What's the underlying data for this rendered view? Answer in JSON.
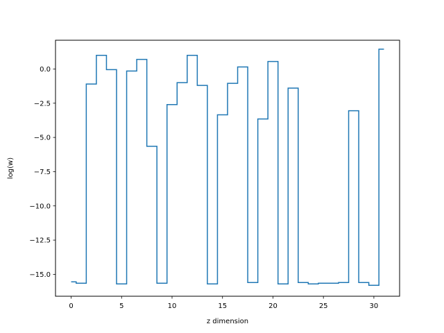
{
  "chart_data": {
    "type": "line",
    "drawstyle": "steps-mid",
    "xlabel": "z dimension",
    "ylabel": "log(w)",
    "xlim": [
      -1.55,
      32.55
    ],
    "ylim": [
      -16.6,
      2.1
    ],
    "xticks": [
      0,
      5,
      10,
      15,
      20,
      25,
      30
    ],
    "xtick_labels": [
      "0",
      "5",
      "10",
      "15",
      "20",
      "25",
      "30"
    ],
    "yticks": [
      0.0,
      -2.5,
      -5.0,
      -7.5,
      -10.0,
      -12.5,
      -15.0
    ],
    "ytick_labels": [
      "0.0",
      "−2.5",
      "−5.0",
      "−7.5",
      "−10.0",
      "−12.5",
      "−15.0"
    ],
    "grid": false,
    "line_color": "#1f77b4",
    "x": [
      0,
      1,
      2,
      3,
      4,
      5,
      6,
      7,
      8,
      9,
      10,
      11,
      12,
      13,
      14,
      15,
      16,
      17,
      18,
      19,
      20,
      21,
      22,
      23,
      24,
      25,
      26,
      27,
      28,
      29,
      30,
      31
    ],
    "y": [
      -15.55,
      -15.65,
      -1.1,
      1.0,
      -0.05,
      -15.7,
      -0.15,
      0.7,
      -5.65,
      -15.65,
      -2.6,
      -1.0,
      1.0,
      -1.2,
      -15.7,
      -3.35,
      -1.05,
      0.15,
      -15.6,
      -3.65,
      0.55,
      -15.7,
      -1.4,
      -15.6,
      -15.7,
      -15.65,
      -15.65,
      -15.6,
      -3.05,
      -15.6,
      -15.8,
      1.45
    ]
  }
}
